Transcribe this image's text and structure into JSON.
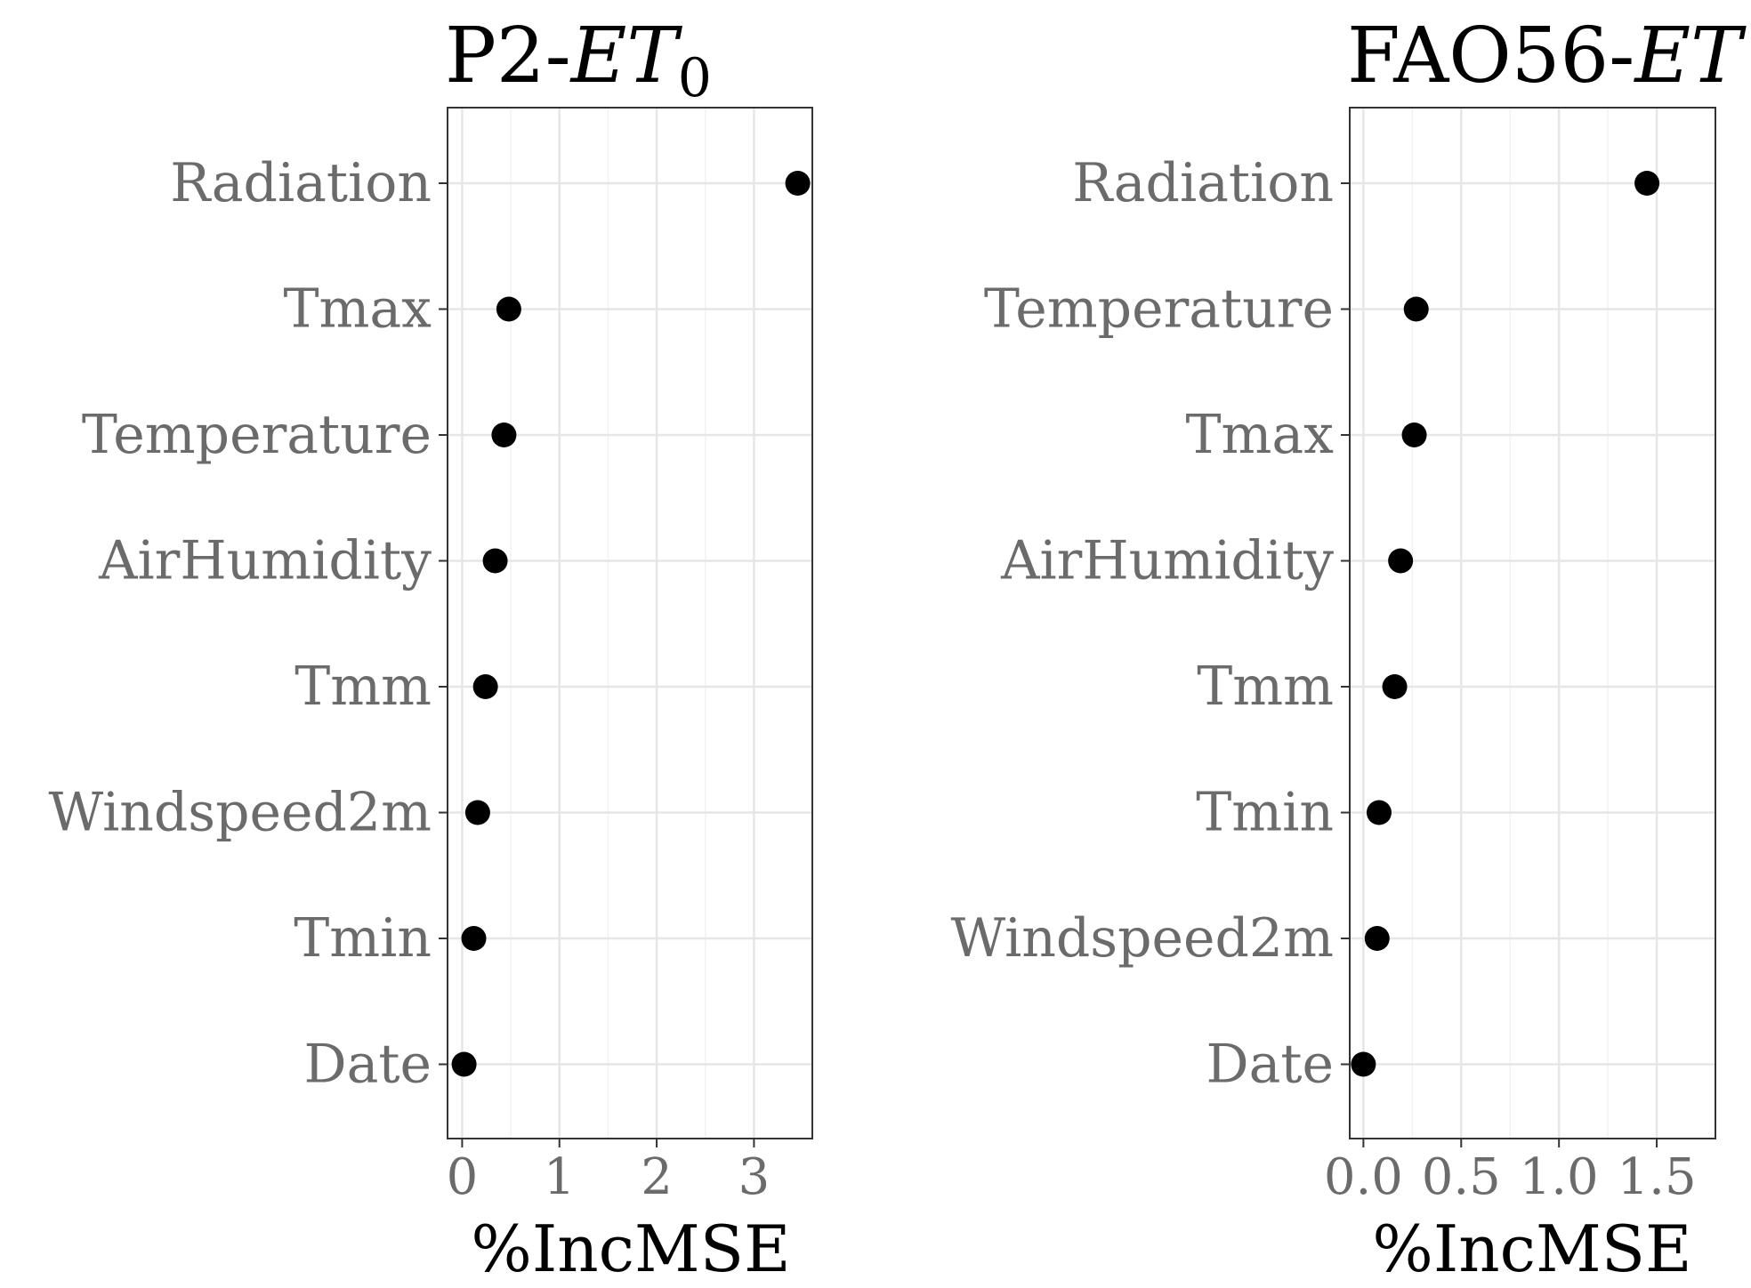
{
  "chart_data": [
    {
      "type": "scatter",
      "title_main": "P2-",
      "title_var": "ET",
      "title_sub": "0",
      "xlabel": "%IncMSE",
      "categories": [
        "Radiation",
        "Tmax",
        "Temperature",
        "AirHumidity",
        "Tmm",
        "Windspeed2m",
        "Tmin",
        "Date"
      ],
      "values": [
        3.45,
        0.48,
        0.43,
        0.34,
        0.24,
        0.16,
        0.12,
        0.02
      ],
      "xlim": [
        -0.15,
        3.6
      ],
      "xticks": [
        0,
        1,
        2,
        3
      ],
      "xtick_labels": [
        "0",
        "1",
        "2",
        "3"
      ],
      "grid": true,
      "marker_color": "#000000"
    },
    {
      "type": "scatter",
      "title_main": "FAO56-",
      "title_var": "ET",
      "title_sub": "",
      "xlabel": "%IncMSE",
      "categories": [
        "Radiation",
        "Temperature",
        "Tmax",
        "AirHumidity",
        "Tmm",
        "Tmin",
        "Windspeed2m",
        "Date"
      ],
      "values": [
        1.45,
        0.27,
        0.26,
        0.19,
        0.16,
        0.08,
        0.07,
        0.0
      ],
      "xlim": [
        -0.07,
        1.8
      ],
      "xticks": [
        0.0,
        0.5,
        1.0,
        1.5
      ],
      "xtick_labels": [
        "0.0",
        "0.5",
        "1.0",
        "1.5"
      ],
      "grid": true,
      "marker_color": "#000000"
    }
  ]
}
